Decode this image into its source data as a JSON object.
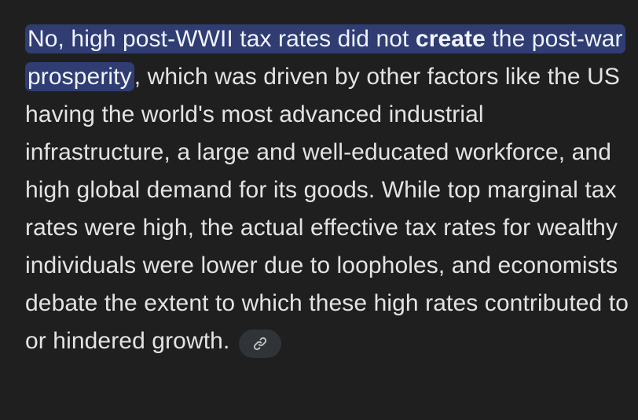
{
  "answer": {
    "highlight_part1": "No, high post-WWII tax rates did not ",
    "highlight_bold": "create",
    "highlight_part2": " the post-war prosperity",
    "body": ", which was driven by other factors like the US having the world's most advanced industrial infrastructure, a large and well-educated workforce, and high global demand for its goods. While top marginal tax rates were high, the actual effective tax rates for wealthy individuals were lower due to loopholes, and economists debate the extent to which these high rates contributed to or hindered growth."
  },
  "source_chip": {
    "icon": "link-icon"
  },
  "colors": {
    "background": "#1f1f1f",
    "text": "#e3e3e3",
    "highlight": "#2f3d73",
    "chip": "#303438"
  }
}
